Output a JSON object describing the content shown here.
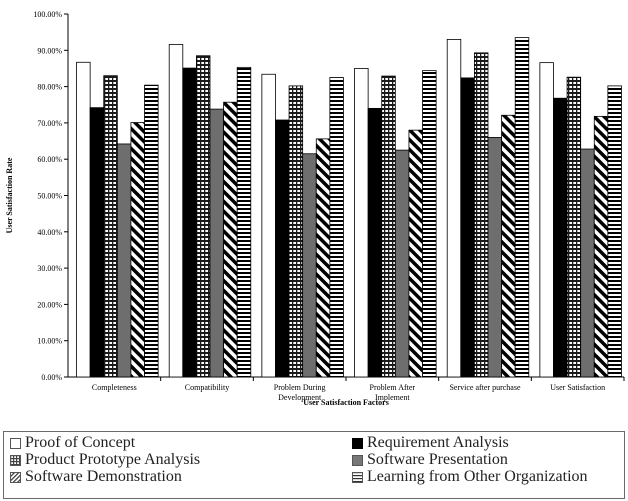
{
  "chart_data": {
    "type": "bar",
    "xlabel": "User Satisfaction Factors",
    "ylabel": "User Satisfaction Rate",
    "ylim": [
      0,
      100
    ],
    "ytick_format": "percent_2dp",
    "yticks": [
      0,
      10,
      20,
      30,
      40,
      50,
      60,
      70,
      80,
      90,
      100
    ],
    "grid": false,
    "legend_position": "bottom",
    "categories": [
      [
        "Completeness"
      ],
      [
        "Compatibility"
      ],
      [
        "Problem During",
        "Development"
      ],
      [
        "Problem After",
        "Implement"
      ],
      [
        "Service after purchase"
      ],
      [
        "User Satisfaction"
      ]
    ],
    "series": [
      {
        "name": "Proof of Concept",
        "pattern": "white",
        "values": [
          86.7,
          91.6,
          83.4,
          85.0,
          93.0,
          86.6
        ]
      },
      {
        "name": "Requirement Analysis",
        "pattern": "black",
        "values": [
          74.2,
          85.1,
          70.8,
          74.0,
          82.4,
          76.8
        ]
      },
      {
        "name": "Product Prototype Analysis",
        "pattern": "grid",
        "values": [
          83.0,
          88.5,
          80.2,
          82.9,
          89.3,
          82.6
        ]
      },
      {
        "name": "Software Presentation",
        "pattern": "gray",
        "values": [
          64.2,
          73.8,
          61.5,
          62.5,
          66.0,
          62.8
        ]
      },
      {
        "name": "Software Demonstration",
        "pattern": "diagonal",
        "values": [
          70.1,
          75.7,
          65.6,
          68.0,
          72.1,
          71.8
        ]
      },
      {
        "name": "Learning from Other Organization",
        "pattern": "hstripe",
        "values": [
          80.4,
          85.3,
          82.5,
          84.4,
          93.5,
          80.2
        ]
      }
    ]
  }
}
